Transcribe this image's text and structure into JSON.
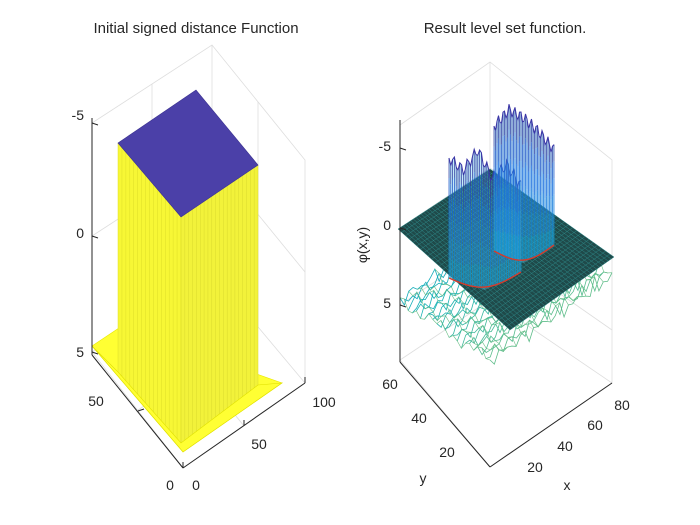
{
  "figure": {
    "background": "#ffffff"
  },
  "chart_data": [
    {
      "type": "surface",
      "title": "Initial signed distance Function",
      "xlabel": "",
      "ylabel": "",
      "zlabel": "",
      "z_axis_reversed": true,
      "xlim": [
        0,
        100
      ],
      "ylim": [
        0,
        50
      ],
      "zlim": [
        -5,
        5
      ],
      "x_ticks": [
        "0",
        "50",
        "100"
      ],
      "y_ticks": [
        "0",
        "50"
      ],
      "z_ticks": [
        "-5",
        "0",
        "5"
      ],
      "surface": {
        "description_values": {
          "plateau_value": 5,
          "box_value": -5,
          "box_x_range": [
            50,
            65
          ],
          "box_y_range": [
            35,
            55
          ]
        },
        "colors": {
          "plateau": "#ffff33",
          "box_sides": "#f2f23a",
          "box_top": "#4b40a8"
        }
      }
    },
    {
      "type": "surface",
      "title": "Result level set function.",
      "xlabel": "x",
      "ylabel": "y",
      "zlabel": "φ(x,y)",
      "z_axis_reversed": true,
      "xlim": [
        0,
        90
      ],
      "ylim": [
        0,
        70
      ],
      "zlim": [
        -7,
        8
      ],
      "x_ticks": [
        "20",
        "40",
        "60",
        "80"
      ],
      "y_ticks": [
        "20",
        "40",
        "60"
      ],
      "z_ticks": [
        "-5",
        "0",
        "5"
      ],
      "surface": {
        "zero_plane_value": 0,
        "zero_plane_color": "#1f4a4a",
        "contour_color": "#d93a2a",
        "peak_values": [
          -6.5,
          -5.5,
          -4.5,
          -6.0,
          -3.5
        ],
        "lower_oscillation_range": [
          3,
          8
        ],
        "colormap": "parula"
      }
    }
  ]
}
